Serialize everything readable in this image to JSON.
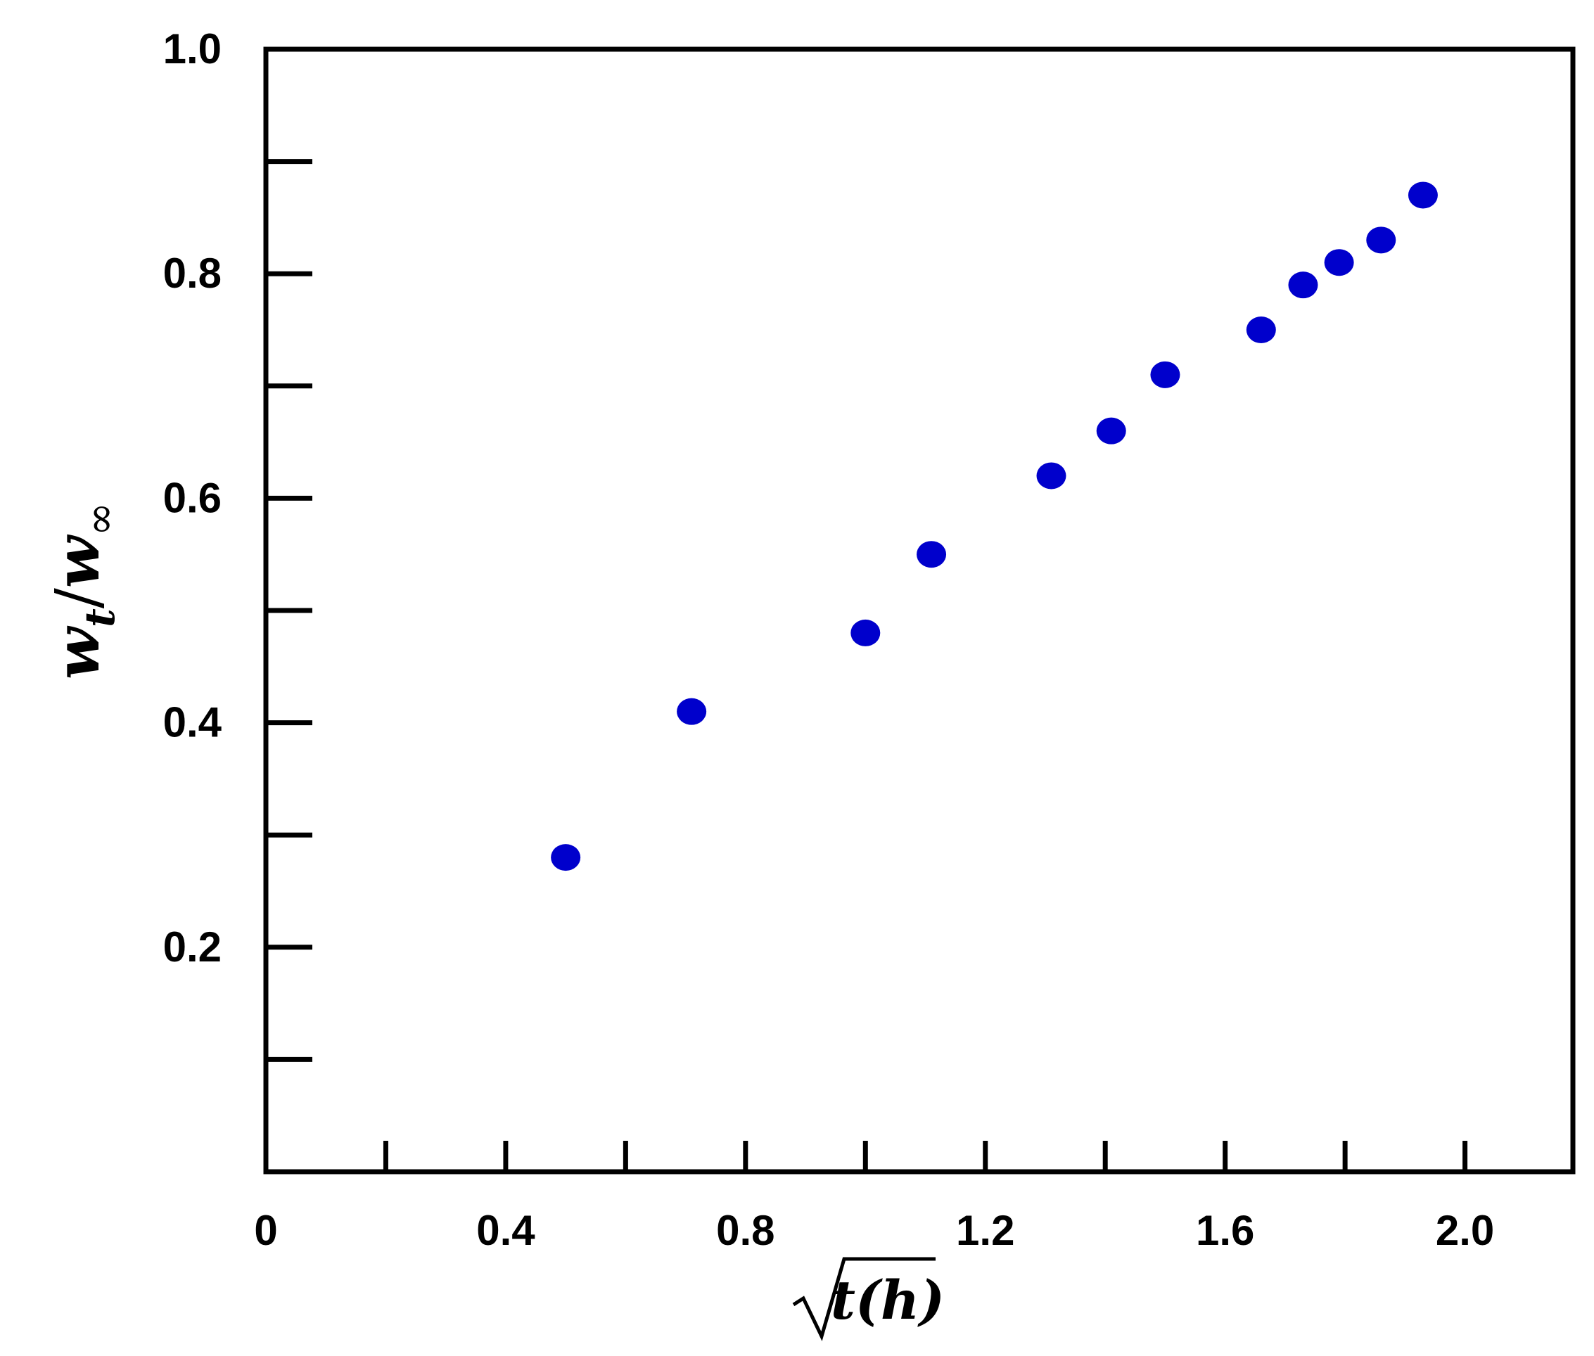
{
  "chart_data": {
    "type": "scatter",
    "title": "",
    "xlabel": "t(h)",
    "xlabel_has_sqrt": true,
    "ylabel": {
      "base": "w",
      "subscript_num": "t",
      "subscript_den": "∞",
      "text": "w_t/w_∞"
    },
    "xlim": [
      0,
      2.18
    ],
    "ylim": [
      0,
      1.0
    ],
    "x_ticks": [
      0.2,
      0.4,
      0.6,
      0.8,
      1.0,
      1.2,
      1.4,
      1.6,
      1.8,
      2.0
    ],
    "x_tick_labels": [
      {
        "value": 0,
        "label": "0"
      },
      {
        "value": 0.4,
        "label": "0.4"
      },
      {
        "value": 0.8,
        "label": "0.8"
      },
      {
        "value": 1.2,
        "label": "1.2"
      },
      {
        "value": 1.6,
        "label": "1.6"
      },
      {
        "value": 2.0,
        "label": "2.0"
      }
    ],
    "y_ticks": [
      0.1,
      0.2,
      0.3,
      0.4,
      0.5,
      0.6,
      0.7,
      0.8,
      0.9
    ],
    "y_tick_labels": [
      {
        "value": 0.2,
        "label": "0.2"
      },
      {
        "value": 0.4,
        "label": "0.4"
      },
      {
        "value": 0.6,
        "label": "0.6"
      },
      {
        "value": 0.8,
        "label": "0.8"
      },
      {
        "value": 1.0,
        "label": "1.0"
      }
    ],
    "grid": false,
    "series": [
      {
        "color": "#0000cc",
        "x": [
          0.5,
          0.71,
          1.0,
          1.11,
          1.31,
          1.41,
          1.5,
          1.66,
          1.73,
          1.79,
          1.86,
          1.93
        ],
        "y": [
          0.28,
          0.41,
          0.48,
          0.55,
          0.62,
          0.66,
          0.71,
          0.75,
          0.79,
          0.81,
          0.83,
          0.87
        ]
      }
    ]
  }
}
